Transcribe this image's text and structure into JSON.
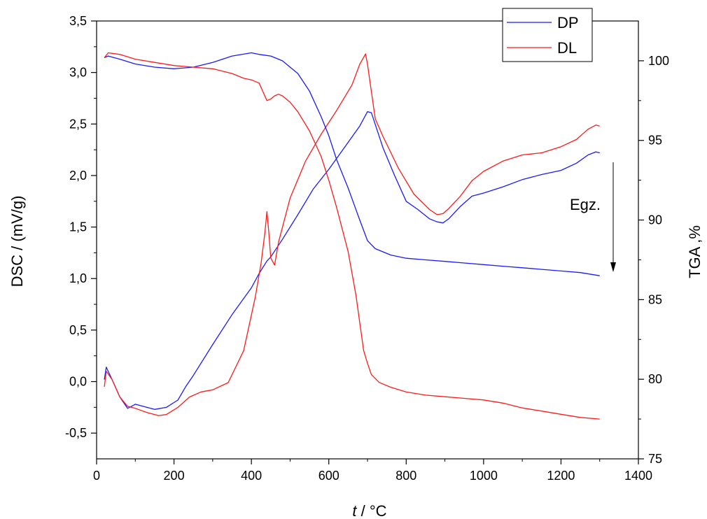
{
  "chart_data": {
    "type": "line",
    "xlabel_italic": "t",
    "xlabel_rest": " / °C",
    "ylabel": "DSC / (mV/g)",
    "y2label": "TGA ,%",
    "xlim": [
      0,
      1400
    ],
    "ylim": [
      -0.75,
      3.5
    ],
    "y2lim": [
      75,
      102.5
    ],
    "x_ticks": [
      "0",
      "200",
      "400",
      "600",
      "800",
      "1000",
      "1200",
      "1400"
    ],
    "x_tick_values": [
      0,
      200,
      400,
      600,
      800,
      1000,
      1200,
      1400
    ],
    "y_ticks": [
      "-0,5",
      "0,0",
      "0,5",
      "1,0",
      "1,5",
      "2,0",
      "2,5",
      "3,0",
      "3,5"
    ],
    "y_tick_values": [
      -0.5,
      0,
      0.5,
      1.0,
      1.5,
      2.0,
      2.5,
      3.0,
      3.5
    ],
    "y2_ticks": [
      "75",
      "80",
      "85",
      "90",
      "95",
      "100"
    ],
    "y2_tick_values": [
      75,
      80,
      85,
      90,
      95,
      100
    ],
    "legend_position": "top-right",
    "annotation": {
      "text": "Egz.",
      "arrow": "down"
    },
    "colors": {
      "DP": "#1a1aff",
      "DL": "#ff1a1a"
    },
    "series": [
      {
        "name": "DP",
        "axis": "left",
        "curve": "DSC",
        "x": [
          20,
          25,
          40,
          60,
          80,
          90,
          100,
          120,
          150,
          180,
          210,
          230,
          250,
          300,
          350,
          400,
          420,
          440,
          450,
          480,
          520,
          560,
          600,
          640,
          680,
          700,
          710,
          740,
          770,
          800,
          830,
          860,
          880,
          895,
          910,
          940,
          970,
          1000,
          1050,
          1100,
          1150,
          1200,
          1240,
          1270,
          1290,
          1300
        ],
        "y": [
          0.02,
          0.14,
          0.02,
          -0.15,
          -0.26,
          -0.24,
          -0.22,
          -0.24,
          -0.27,
          -0.25,
          -0.18,
          -0.05,
          0.06,
          0.36,
          0.65,
          0.91,
          1.05,
          1.17,
          1.21,
          1.38,
          1.62,
          1.87,
          2.06,
          2.27,
          2.48,
          2.62,
          2.61,
          2.27,
          2.0,
          1.75,
          1.67,
          1.58,
          1.55,
          1.54,
          1.58,
          1.7,
          1.8,
          1.83,
          1.89,
          1.96,
          2.01,
          2.05,
          2.12,
          2.2,
          2.23,
          2.22
        ]
      },
      {
        "name": "DL",
        "axis": "left",
        "curve": "DSC",
        "x": [
          20,
          25,
          40,
          60,
          80,
          100,
          130,
          160,
          180,
          210,
          240,
          270,
          300,
          340,
          380,
          410,
          425,
          435,
          440,
          445,
          450,
          460,
          470,
          500,
          540,
          580,
          620,
          660,
          680,
          695,
          700,
          720,
          740,
          780,
          820,
          860,
          880,
          895,
          910,
          940,
          970,
          1000,
          1050,
          1100,
          1150,
          1200,
          1240,
          1270,
          1290,
          1300
        ],
        "y": [
          -0.05,
          0.1,
          0.02,
          -0.15,
          -0.24,
          -0.26,
          -0.3,
          -0.33,
          -0.32,
          -0.25,
          -0.15,
          -0.1,
          -0.08,
          -0.01,
          0.3,
          0.82,
          1.15,
          1.45,
          1.65,
          1.45,
          1.2,
          1.13,
          1.35,
          1.78,
          2.14,
          2.4,
          2.63,
          2.88,
          3.08,
          3.18,
          3.08,
          2.55,
          2.38,
          2.07,
          1.82,
          1.67,
          1.62,
          1.63,
          1.68,
          1.8,
          1.95,
          2.04,
          2.14,
          2.2,
          2.22,
          2.28,
          2.35,
          2.45,
          2.49,
          2.48
        ]
      },
      {
        "name": "DP",
        "axis": "right",
        "curve": "TGA",
        "x": [
          20,
          30,
          60,
          100,
          150,
          200,
          250,
          300,
          350,
          400,
          420,
          450,
          480,
          500,
          520,
          550,
          580,
          600,
          620,
          650,
          680,
          700,
          720,
          760,
          800,
          850,
          900,
          950,
          1000,
          1050,
          1100,
          1150,
          1200,
          1250,
          1300
        ],
        "y": [
          100.2,
          100.3,
          100.1,
          99.8,
          99.6,
          99.5,
          99.6,
          99.9,
          100.3,
          100.5,
          100.4,
          100.3,
          100.0,
          99.6,
          99.2,
          98.1,
          96.5,
          95.3,
          93.8,
          92.0,
          90.0,
          88.7,
          88.2,
          87.8,
          87.6,
          87.5,
          87.4,
          87.3,
          87.2,
          87.1,
          87.0,
          86.9,
          86.8,
          86.7,
          86.5
        ]
      },
      {
        "name": "DL",
        "axis": "right",
        "curve": "TGA",
        "x": [
          20,
          30,
          60,
          100,
          150,
          200,
          250,
          300,
          350,
          380,
          400,
          420,
          440,
          450,
          460,
          470,
          480,
          500,
          520,
          550,
          580,
          600,
          620,
          650,
          670,
          690,
          700,
          710,
          730,
          760,
          800,
          850,
          900,
          950,
          1000,
          1050,
          1100,
          1150,
          1200,
          1250,
          1300
        ],
        "y": [
          100.2,
          100.5,
          100.4,
          100.1,
          99.9,
          99.7,
          99.6,
          99.5,
          99.2,
          98.9,
          98.8,
          98.6,
          97.5,
          97.6,
          97.8,
          97.9,
          97.8,
          97.4,
          96.8,
          95.6,
          94.0,
          92.5,
          90.8,
          88.0,
          85.3,
          81.8,
          81.0,
          80.3,
          79.8,
          79.5,
          79.2,
          79.0,
          78.9,
          78.8,
          78.7,
          78.5,
          78.2,
          78.0,
          77.8,
          77.6,
          77.5
        ]
      }
    ]
  }
}
